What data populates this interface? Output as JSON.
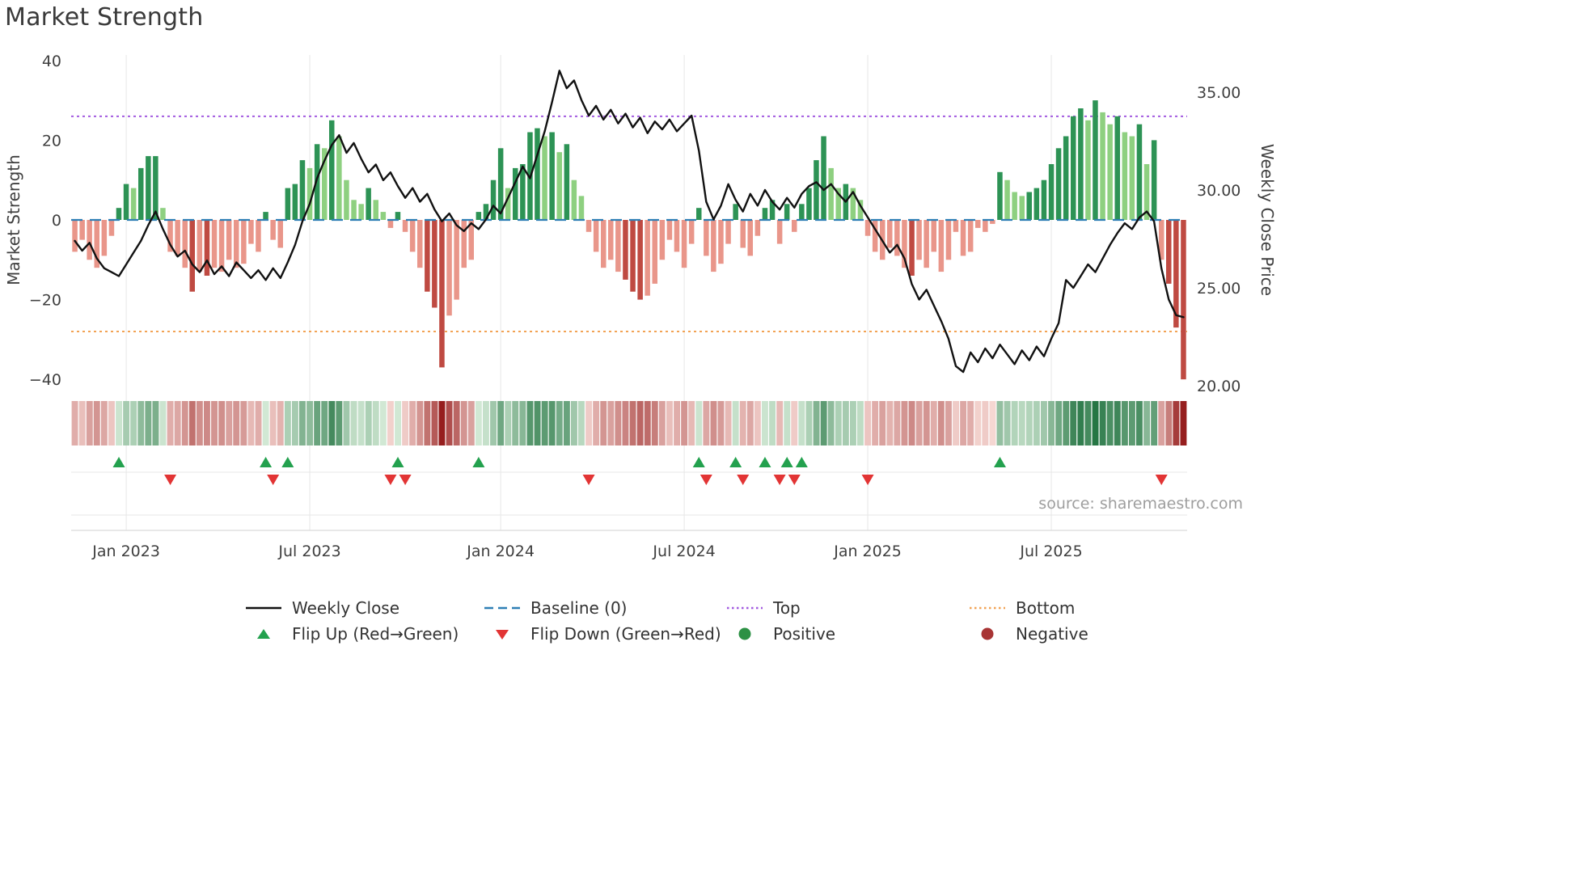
{
  "title": "Market Strength",
  "source": "source: sharemaestro.com",
  "colors": {
    "line_color": "#111111",
    "baseline_color": "#2f7fb5",
    "top_color": "#a25be0",
    "bottom_color": "#f2a355",
    "flip_up_color": "#23a14e",
    "flip_down_color": "#e23434",
    "positive_color": "#2c9144",
    "negative_color": "#a83434",
    "bar_pos_dark": "#2d9355",
    "bar_pos_light": "#8ed080",
    "bar_neg_dark": "#bf4a42",
    "bar_neg_light": "#e9968a",
    "grid_color": "#e7e7e7",
    "axis_line_color": "#d2d2d2",
    "tick_color": "#3f3f3f",
    "title_color": "#3a3a3a",
    "source_color": "#9e9e9e"
  },
  "chart_data": {
    "type": "bar+line combo with heat strip and flip markers",
    "n_weeks": 152,
    "x_ticks": [
      {
        "label": "Jan 2023",
        "week": 7
      },
      {
        "label": "Jul 2023",
        "week": 32
      },
      {
        "label": "Jan 2024",
        "week": 58
      },
      {
        "label": "Jul 2024",
        "week": 83
      },
      {
        "label": "Jan 2025",
        "week": 108
      },
      {
        "label": "Jul 2025",
        "week": 133
      }
    ],
    "left_axis": {
      "title": "Market Strength",
      "range": [
        -44,
        41.5
      ],
      "ticks": [
        {
          "label": "40",
          "value": 40
        },
        {
          "label": "20",
          "value": 20
        },
        {
          "label": "0",
          "value": 0
        },
        {
          "label": "−20",
          "value": -20
        },
        {
          "label": "−40",
          "value": -40
        }
      ]
    },
    "right_axis": {
      "title": "Weekly Close Price",
      "range": [
        19.4,
        36.9
      ],
      "ticks": [
        {
          "label": "35.00",
          "value": 35
        },
        {
          "label": "30.00",
          "value": 30
        },
        {
          "label": "25.00",
          "value": 25
        },
        {
          "label": "20.00",
          "value": 20
        }
      ]
    },
    "baseline": 0,
    "top_level": 26,
    "bottom_level": -28,
    "series": [
      {
        "name": "Strength Oscillator",
        "type": "bar",
        "axis": "left",
        "values": [
          -8,
          -5,
          -10,
          -12,
          -9,
          -4,
          3,
          9,
          8,
          13,
          16,
          16,
          3,
          -8,
          -9,
          -12,
          -18,
          -13,
          -14,
          -12,
          -13,
          -10,
          -12,
          -11,
          -6,
          -8,
          2,
          -5,
          -7,
          8,
          9,
          15,
          13,
          19,
          18,
          25,
          21,
          10,
          5,
          4,
          8,
          5,
          2,
          -2,
          2,
          -3,
          -8,
          -12,
          -18,
          -22,
          -37,
          -24,
          -20,
          -12,
          -10,
          2,
          4,
          10,
          18,
          8,
          13,
          14,
          22,
          23,
          21,
          22,
          17,
          19,
          10,
          6,
          -3,
          -8,
          -12,
          -10,
          -13,
          -15,
          -18,
          -20,
          -19,
          -16,
          -10,
          -5,
          -8,
          -12,
          -6,
          3,
          -9,
          -13,
          -11,
          -6,
          4,
          -7,
          -9,
          -4,
          3,
          5,
          -6,
          4,
          -3,
          4,
          8,
          15,
          21,
          13,
          8,
          9,
          8,
          5,
          -4,
          -8,
          -10,
          -7,
          -9,
          -12,
          -14,
          -10,
          -12,
          -8,
          -13,
          -10,
          -3,
          -9,
          -8,
          -2,
          -3,
          -1,
          12,
          10,
          7,
          6,
          7,
          8,
          10,
          14,
          18,
          21,
          26,
          28,
          25,
          30,
          27,
          24,
          26,
          22,
          21,
          24,
          14,
          20,
          -10,
          -16,
          -27,
          -40
        ]
      },
      {
        "name": "Weekly Close",
        "type": "line",
        "axis": "right",
        "values": [
          27.4,
          26.9,
          27.3,
          26.5,
          26.0,
          25.8,
          25.6,
          26.2,
          26.8,
          27.4,
          28.2,
          28.9,
          28.0,
          27.2,
          26.6,
          26.9,
          26.2,
          25.8,
          26.4,
          25.7,
          26.1,
          25.6,
          26.3,
          25.9,
          25.5,
          25.9,
          25.4,
          26.0,
          25.5,
          26.3,
          27.2,
          28.4,
          29.3,
          30.6,
          31.5,
          32.3,
          32.8,
          31.9,
          32.4,
          31.6,
          30.9,
          31.3,
          30.5,
          30.9,
          30.2,
          29.6,
          30.1,
          29.4,
          29.8,
          29.0,
          28.4,
          28.8,
          28.2,
          27.9,
          28.3,
          28.0,
          28.5,
          29.2,
          28.8,
          29.6,
          30.4,
          31.2,
          30.6,
          31.8,
          33.0,
          34.5,
          36.1,
          35.2,
          35.6,
          34.6,
          33.8,
          34.3,
          33.6,
          34.1,
          33.4,
          33.9,
          33.2,
          33.7,
          32.9,
          33.5,
          33.1,
          33.6,
          33.0,
          33.4,
          33.8,
          32.0,
          29.4,
          28.5,
          29.2,
          30.3,
          29.5,
          28.9,
          29.8,
          29.2,
          30.0,
          29.4,
          29.0,
          29.6,
          29.1,
          29.8,
          30.2,
          30.4,
          30.0,
          30.3,
          29.8,
          29.4,
          29.9,
          29.2,
          28.6,
          28.0,
          27.4,
          26.8,
          27.2,
          26.5,
          25.2,
          24.4,
          24.9,
          24.1,
          23.3,
          22.4,
          21.0,
          20.7,
          21.7,
          21.2,
          21.9,
          21.4,
          22.1,
          21.6,
          21.1,
          21.8,
          21.3,
          22.0,
          21.5,
          22.4,
          23.2,
          25.4,
          25.0,
          25.6,
          26.2,
          25.8,
          26.5,
          27.2,
          27.8,
          28.3,
          28.0,
          28.6,
          28.9,
          28.4,
          26.0,
          24.4,
          23.6,
          23.5
        ]
      }
    ],
    "flip_up_weeks": [
      6,
      26,
      29,
      44,
      55,
      85,
      90,
      94,
      97,
      99,
      126
    ],
    "flip_down_weeks": [
      13,
      27,
      43,
      45,
      70,
      86,
      91,
      96,
      98,
      108,
      148
    ]
  },
  "legend": {
    "items": [
      {
        "label": "Weekly Close",
        "swatch": "line-black"
      },
      {
        "label": "Baseline (0)",
        "swatch": "dash-blue"
      },
      {
        "label": "Top",
        "swatch": "dot-purple"
      },
      {
        "label": "Bottom",
        "swatch": "dot-orange"
      },
      {
        "label": "Flip Up (Red→Green)",
        "swatch": "triangle-up-green"
      },
      {
        "label": "Flip Down (Green→Red)",
        "swatch": "triangle-down-red"
      },
      {
        "label": "Positive",
        "swatch": "circle-green"
      },
      {
        "label": "Negative",
        "swatch": "circle-darkred"
      }
    ]
  }
}
